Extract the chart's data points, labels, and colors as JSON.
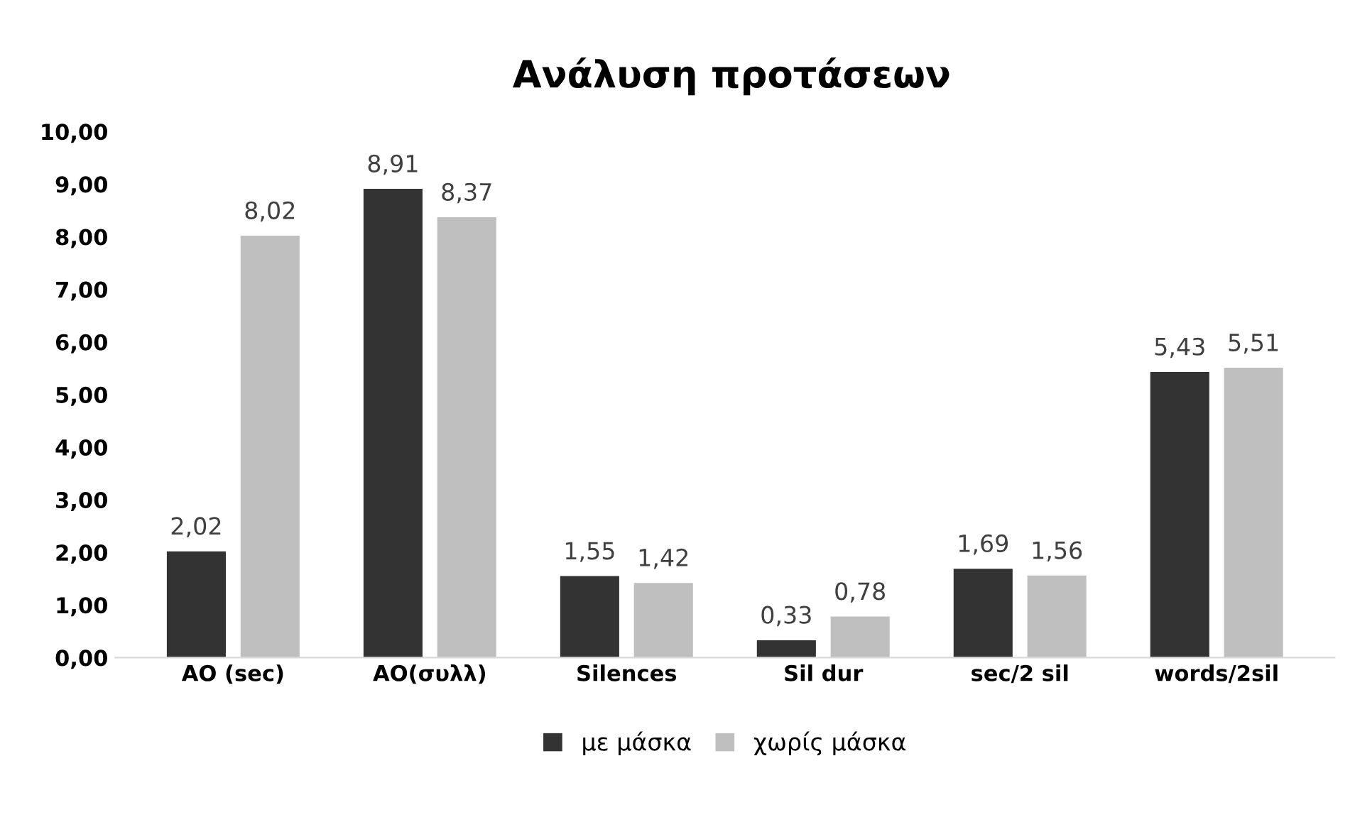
{
  "chart_data": {
    "type": "bar",
    "title": "Ανάλυση προτάσεων",
    "categories": [
      "AO (sec)",
      "AO(συλλ)",
      "Silences",
      "Sil dur",
      "sec/2 sil",
      "words/2sil"
    ],
    "series": [
      {
        "name": "με μάσκα",
        "color": "#333333",
        "values": [
          2.02,
          8.91,
          1.55,
          0.33,
          1.69,
          5.43
        ],
        "value_labels": [
          "2,02",
          "8,91",
          "1,55",
          "0,33",
          "1,69",
          "5,43"
        ]
      },
      {
        "name": "χωρίς μάσκα",
        "color": "#bfbfbf",
        "values": [
          8.02,
          8.37,
          1.42,
          0.78,
          1.56,
          5.51
        ],
        "value_labels": [
          "8,02",
          "8,37",
          "1,42",
          "0,78",
          "1,56",
          "5,51"
        ]
      }
    ],
    "ylim": [
      0,
      10
    ],
    "yticks": [
      {
        "value": 0,
        "label": "0,00"
      },
      {
        "value": 1,
        "label": "1,00"
      },
      {
        "value": 2,
        "label": "2,00"
      },
      {
        "value": 3,
        "label": "3,00"
      },
      {
        "value": 4,
        "label": "4,00"
      },
      {
        "value": 5,
        "label": "5,00"
      },
      {
        "value": 6,
        "label": "6,00"
      },
      {
        "value": 7,
        "label": "7,00"
      },
      {
        "value": 8,
        "label": "8,00"
      },
      {
        "value": 9,
        "label": "9,00"
      },
      {
        "value": 10,
        "label": "10,00"
      }
    ],
    "grid": false,
    "legend": "bottom"
  }
}
